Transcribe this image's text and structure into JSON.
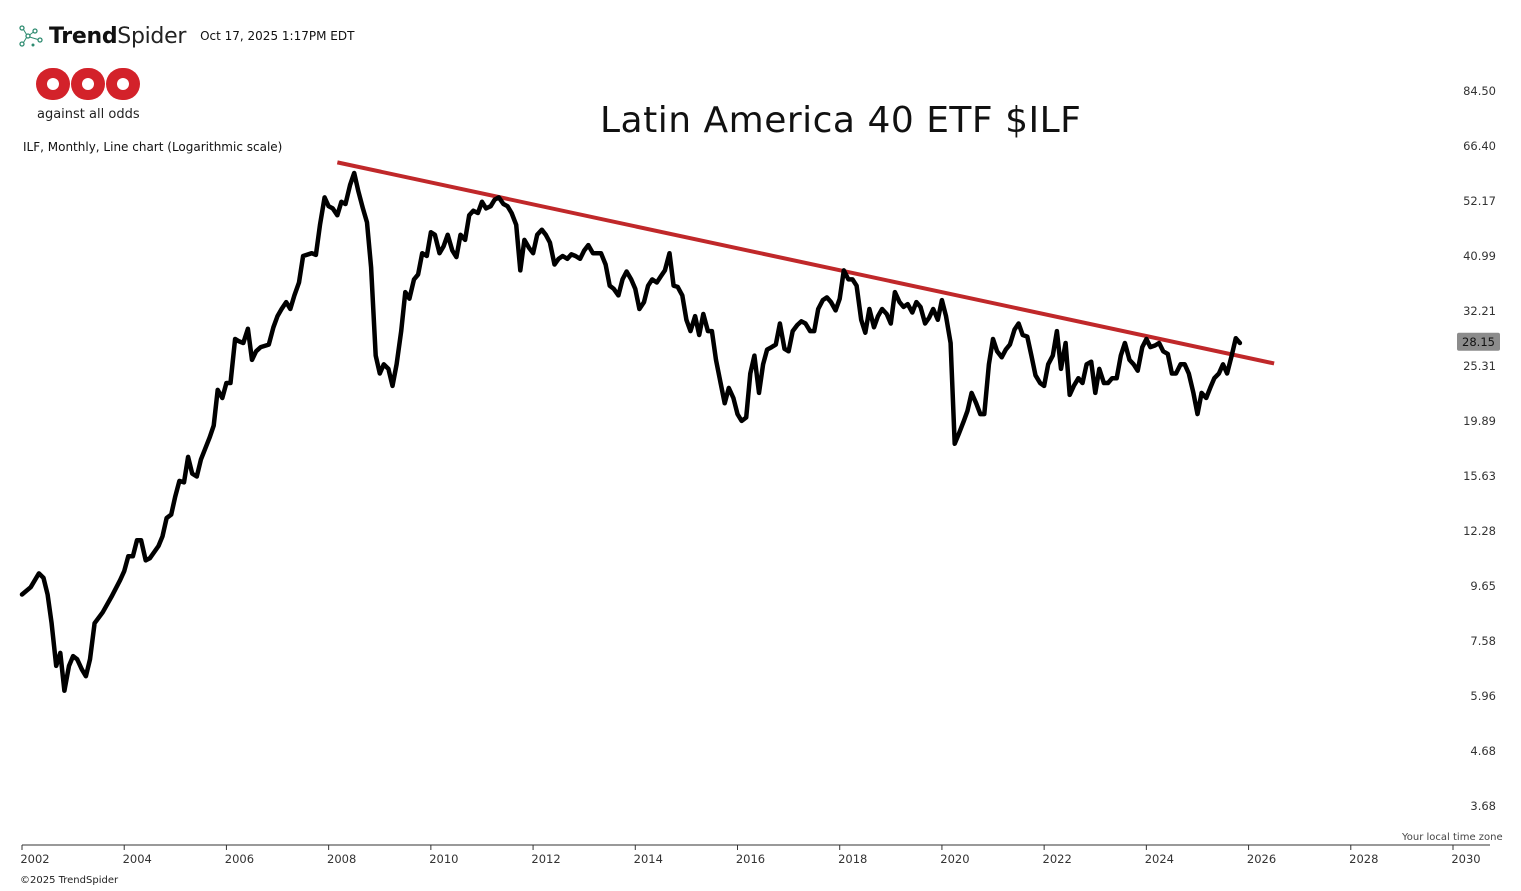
{
  "header": {
    "brand_bold": "Trend",
    "brand_light": "Spider",
    "timestamp": "Oct 17, 2025 1:17PM EDT"
  },
  "logo": {
    "tagline": "against all odds",
    "color": "#d3222a"
  },
  "footer": {
    "copyright": "©2025 TrendSpider",
    "timezone_note": "Your local time zone"
  },
  "chart_data": {
    "type": "line",
    "title": "Latin America 40 ETF $ILF",
    "subtitle": "ILF, Monthly, Line chart (Logarithmic scale)",
    "scale": "log",
    "xlabel": "",
    "ylabel": "",
    "xlim": [
      2001.98,
      2030.4
    ],
    "ylim": [
      3.3,
      95
    ],
    "y_ticks": [
      "84.50",
      "66.40",
      "52.17",
      "40.99",
      "32.21",
      "25.31",
      "19.89",
      "15.63",
      "12.28",
      "9.65",
      "7.58",
      "5.96",
      "4.68",
      "3.68"
    ],
    "x_ticks": [
      "2002",
      "2004",
      "2006",
      "2008",
      "2010",
      "2012",
      "2014",
      "2016",
      "2018",
      "2020",
      "2022",
      "2024",
      "2026",
      "2028",
      "2030"
    ],
    "last_value": "28.15",
    "line_color": "#000000",
    "trendline_color": "#c0282a",
    "series": [
      {
        "name": "ILF",
        "points": [
          [
            2002.0,
            9.3
          ],
          [
            2002.17,
            9.6
          ],
          [
            2002.33,
            10.2
          ],
          [
            2002.42,
            10.0
          ],
          [
            2002.5,
            9.3
          ],
          [
            2002.58,
            8.2
          ],
          [
            2002.67,
            6.8
          ],
          [
            2002.75,
            7.2
          ],
          [
            2002.83,
            6.1
          ],
          [
            2002.92,
            6.8
          ],
          [
            2003.0,
            7.1
          ],
          [
            2003.08,
            7.0
          ],
          [
            2003.17,
            6.7
          ],
          [
            2003.25,
            6.5
          ],
          [
            2003.33,
            7.0
          ],
          [
            2003.42,
            8.2
          ],
          [
            2003.58,
            8.6
          ],
          [
            2003.75,
            9.2
          ],
          [
            2003.92,
            9.9
          ],
          [
            2004.0,
            10.3
          ],
          [
            2004.08,
            11.0
          ],
          [
            2004.17,
            11.0
          ],
          [
            2004.25,
            11.8
          ],
          [
            2004.33,
            11.8
          ],
          [
            2004.42,
            10.8
          ],
          [
            2004.5,
            10.9
          ],
          [
            2004.67,
            11.5
          ],
          [
            2004.75,
            12.0
          ],
          [
            2004.83,
            13.0
          ],
          [
            2004.92,
            13.2
          ],
          [
            2005.0,
            14.3
          ],
          [
            2005.08,
            15.3
          ],
          [
            2005.17,
            15.2
          ],
          [
            2005.25,
            17.0
          ],
          [
            2005.33,
            15.8
          ],
          [
            2005.42,
            15.6
          ],
          [
            2005.5,
            16.8
          ],
          [
            2005.67,
            18.5
          ],
          [
            2005.75,
            19.5
          ],
          [
            2005.83,
            22.8
          ],
          [
            2005.92,
            22.0
          ],
          [
            2006.0,
            23.5
          ],
          [
            2006.08,
            23.5
          ],
          [
            2006.17,
            28.5
          ],
          [
            2006.25,
            28.2
          ],
          [
            2006.33,
            28.0
          ],
          [
            2006.42,
            29.8
          ],
          [
            2006.5,
            26.0
          ],
          [
            2006.58,
            27.0
          ],
          [
            2006.67,
            27.5
          ],
          [
            2006.83,
            27.8
          ],
          [
            2006.92,
            30.0
          ],
          [
            2007.0,
            31.5
          ],
          [
            2007.08,
            32.5
          ],
          [
            2007.17,
            33.5
          ],
          [
            2007.25,
            32.5
          ],
          [
            2007.33,
            34.5
          ],
          [
            2007.42,
            36.5
          ],
          [
            2007.5,
            41.0
          ],
          [
            2007.67,
            41.5
          ],
          [
            2007.75,
            41.2
          ],
          [
            2007.83,
            47.0
          ],
          [
            2007.92,
            53.0
          ],
          [
            2008.0,
            51.0
          ],
          [
            2008.08,
            50.5
          ],
          [
            2008.17,
            49.0
          ],
          [
            2008.25,
            52.0
          ],
          [
            2008.33,
            51.5
          ],
          [
            2008.42,
            56.0
          ],
          [
            2008.5,
            59.0
          ],
          [
            2008.58,
            54.5
          ],
          [
            2008.67,
            50.5
          ],
          [
            2008.75,
            47.5
          ],
          [
            2008.83,
            39.0
          ],
          [
            2008.92,
            26.5
          ],
          [
            2009.0,
            24.5
          ],
          [
            2009.08,
            25.5
          ],
          [
            2009.17,
            25.0
          ],
          [
            2009.25,
            23.2
          ],
          [
            2009.33,
            25.5
          ],
          [
            2009.42,
            29.5
          ],
          [
            2009.5,
            35.0
          ],
          [
            2009.58,
            34.0
          ],
          [
            2009.67,
            37.0
          ],
          [
            2009.75,
            37.8
          ],
          [
            2009.83,
            41.5
          ],
          [
            2009.92,
            41.0
          ],
          [
            2010.0,
            45.5
          ],
          [
            2010.08,
            45.0
          ],
          [
            2010.17,
            41.5
          ],
          [
            2010.25,
            42.8
          ],
          [
            2010.33,
            45.0
          ],
          [
            2010.42,
            42.0
          ],
          [
            2010.5,
            40.8
          ],
          [
            2010.58,
            45.0
          ],
          [
            2010.67,
            44.0
          ],
          [
            2010.75,
            49.0
          ],
          [
            2010.83,
            50.0
          ],
          [
            2010.92,
            49.5
          ],
          [
            2011.0,
            52.0
          ],
          [
            2011.08,
            50.5
          ],
          [
            2011.17,
            51.0
          ],
          [
            2011.25,
            52.5
          ],
          [
            2011.33,
            53.0
          ],
          [
            2011.42,
            51.5
          ],
          [
            2011.5,
            51.0
          ],
          [
            2011.58,
            49.5
          ],
          [
            2011.67,
            47.0
          ],
          [
            2011.75,
            38.5
          ],
          [
            2011.83,
            44.0
          ],
          [
            2011.92,
            42.5
          ],
          [
            2012.0,
            41.5
          ],
          [
            2012.08,
            45.0
          ],
          [
            2012.17,
            46.0
          ],
          [
            2012.25,
            45.0
          ],
          [
            2012.33,
            43.5
          ],
          [
            2012.42,
            39.5
          ],
          [
            2012.5,
            40.5
          ],
          [
            2012.58,
            41.0
          ],
          [
            2012.67,
            40.5
          ],
          [
            2012.75,
            41.3
          ],
          [
            2012.83,
            41.0
          ],
          [
            2012.92,
            40.5
          ],
          [
            2013.0,
            42.0
          ],
          [
            2013.08,
            43.0
          ],
          [
            2013.17,
            41.5
          ],
          [
            2013.33,
            41.5
          ],
          [
            2013.42,
            39.5
          ],
          [
            2013.5,
            36.0
          ],
          [
            2013.58,
            35.5
          ],
          [
            2013.67,
            34.5
          ],
          [
            2013.75,
            37.0
          ],
          [
            2013.83,
            38.3
          ],
          [
            2013.92,
            37.0
          ],
          [
            2014.0,
            35.5
          ],
          [
            2014.08,
            32.5
          ],
          [
            2014.17,
            33.5
          ],
          [
            2014.25,
            36.0
          ],
          [
            2014.33,
            37.0
          ],
          [
            2014.42,
            36.5
          ],
          [
            2014.5,
            37.5
          ],
          [
            2014.58,
            38.5
          ],
          [
            2014.67,
            41.5
          ],
          [
            2014.75,
            36.0
          ],
          [
            2014.83,
            35.8
          ],
          [
            2014.92,
            34.5
          ],
          [
            2015.0,
            31.0
          ],
          [
            2015.08,
            29.5
          ],
          [
            2015.17,
            31.5
          ],
          [
            2015.25,
            29.0
          ],
          [
            2015.33,
            31.8
          ],
          [
            2015.42,
            29.5
          ],
          [
            2015.5,
            29.5
          ],
          [
            2015.58,
            26.0
          ],
          [
            2015.67,
            23.5
          ],
          [
            2015.75,
            21.5
          ],
          [
            2015.83,
            23.0
          ],
          [
            2015.92,
            22.0
          ],
          [
            2016.0,
            20.5
          ],
          [
            2016.08,
            19.9
          ],
          [
            2016.17,
            20.2
          ],
          [
            2016.25,
            24.5
          ],
          [
            2016.33,
            26.5
          ],
          [
            2016.42,
            22.5
          ],
          [
            2016.5,
            25.5
          ],
          [
            2016.58,
            27.2
          ],
          [
            2016.67,
            27.5
          ],
          [
            2016.75,
            27.8
          ],
          [
            2016.83,
            30.5
          ],
          [
            2016.92,
            27.3
          ],
          [
            2017.0,
            27.0
          ],
          [
            2017.08,
            29.5
          ],
          [
            2017.17,
            30.3
          ],
          [
            2017.25,
            30.8
          ],
          [
            2017.33,
            30.5
          ],
          [
            2017.42,
            29.5
          ],
          [
            2017.5,
            29.5
          ],
          [
            2017.58,
            32.5
          ],
          [
            2017.67,
            33.8
          ],
          [
            2017.75,
            34.2
          ],
          [
            2017.83,
            33.5
          ],
          [
            2017.92,
            32.3
          ],
          [
            2018.0,
            34.0
          ],
          [
            2018.08,
            38.5
          ],
          [
            2018.17,
            37.0
          ],
          [
            2018.25,
            37.0
          ],
          [
            2018.33,
            36.0
          ],
          [
            2018.42,
            31.0
          ],
          [
            2018.5,
            29.3
          ],
          [
            2018.58,
            32.5
          ],
          [
            2018.67,
            30.0
          ],
          [
            2018.75,
            31.5
          ],
          [
            2018.83,
            32.5
          ],
          [
            2018.92,
            31.8
          ],
          [
            2019.0,
            30.5
          ],
          [
            2019.08,
            35.0
          ],
          [
            2019.17,
            33.5
          ],
          [
            2019.25,
            32.8
          ],
          [
            2019.33,
            33.2
          ],
          [
            2019.42,
            32.0
          ],
          [
            2019.5,
            33.5
          ],
          [
            2019.58,
            32.8
          ],
          [
            2019.67,
            30.5
          ],
          [
            2019.75,
            31.3
          ],
          [
            2019.83,
            32.5
          ],
          [
            2019.92,
            31.0
          ],
          [
            2020.0,
            33.8
          ],
          [
            2020.08,
            31.5
          ],
          [
            2020.17,
            28.0
          ],
          [
            2020.25,
            18.0
          ],
          [
            2020.33,
            18.8
          ],
          [
            2020.42,
            19.8
          ],
          [
            2020.5,
            20.8
          ],
          [
            2020.58,
            22.5
          ],
          [
            2020.67,
            21.5
          ],
          [
            2020.75,
            20.5
          ],
          [
            2020.83,
            20.5
          ],
          [
            2020.92,
            25.5
          ],
          [
            2021.0,
            28.5
          ],
          [
            2021.08,
            27.0
          ],
          [
            2021.17,
            26.3
          ],
          [
            2021.25,
            27.2
          ],
          [
            2021.33,
            27.8
          ],
          [
            2021.42,
            29.7
          ],
          [
            2021.5,
            30.5
          ],
          [
            2021.58,
            29.0
          ],
          [
            2021.67,
            28.8
          ],
          [
            2021.75,
            26.5
          ],
          [
            2021.83,
            24.3
          ],
          [
            2021.92,
            23.5
          ],
          [
            2022.0,
            23.2
          ],
          [
            2022.08,
            25.5
          ],
          [
            2022.17,
            26.5
          ],
          [
            2022.25,
            29.5
          ],
          [
            2022.33,
            25.0
          ],
          [
            2022.42,
            28.0
          ],
          [
            2022.5,
            22.3
          ],
          [
            2022.58,
            23.2
          ],
          [
            2022.67,
            24.0
          ],
          [
            2022.75,
            23.5
          ],
          [
            2022.83,
            25.5
          ],
          [
            2022.92,
            25.8
          ],
          [
            2023.0,
            22.5
          ],
          [
            2023.08,
            25.0
          ],
          [
            2023.17,
            23.5
          ],
          [
            2023.25,
            23.5
          ],
          [
            2023.33,
            24.0
          ],
          [
            2023.42,
            24.0
          ],
          [
            2023.5,
            26.5
          ],
          [
            2023.58,
            28.0
          ],
          [
            2023.67,
            26.0
          ],
          [
            2023.75,
            25.5
          ],
          [
            2023.83,
            24.8
          ],
          [
            2023.92,
            27.5
          ],
          [
            2024.0,
            28.5
          ],
          [
            2024.08,
            27.5
          ],
          [
            2024.17,
            27.7
          ],
          [
            2024.25,
            28.0
          ],
          [
            2024.33,
            27.0
          ],
          [
            2024.42,
            26.7
          ],
          [
            2024.5,
            24.5
          ],
          [
            2024.58,
            24.5
          ],
          [
            2024.67,
            25.5
          ],
          [
            2024.75,
            25.5
          ],
          [
            2024.83,
            24.5
          ],
          [
            2024.92,
            22.5
          ],
          [
            2025.0,
            20.5
          ],
          [
            2025.08,
            22.5
          ],
          [
            2025.17,
            22.0
          ],
          [
            2025.25,
            23.0
          ],
          [
            2025.33,
            24.0
          ],
          [
            2025.42,
            24.5
          ],
          [
            2025.5,
            25.5
          ],
          [
            2025.58,
            24.5
          ],
          [
            2025.67,
            26.5
          ],
          [
            2025.75,
            28.6
          ],
          [
            2025.83,
            28.0
          ]
        ]
      },
      {
        "name": "Downtrend line",
        "points": [
          [
            2008.17,
            61.8
          ],
          [
            2026.5,
            25.6
          ]
        ]
      }
    ]
  }
}
